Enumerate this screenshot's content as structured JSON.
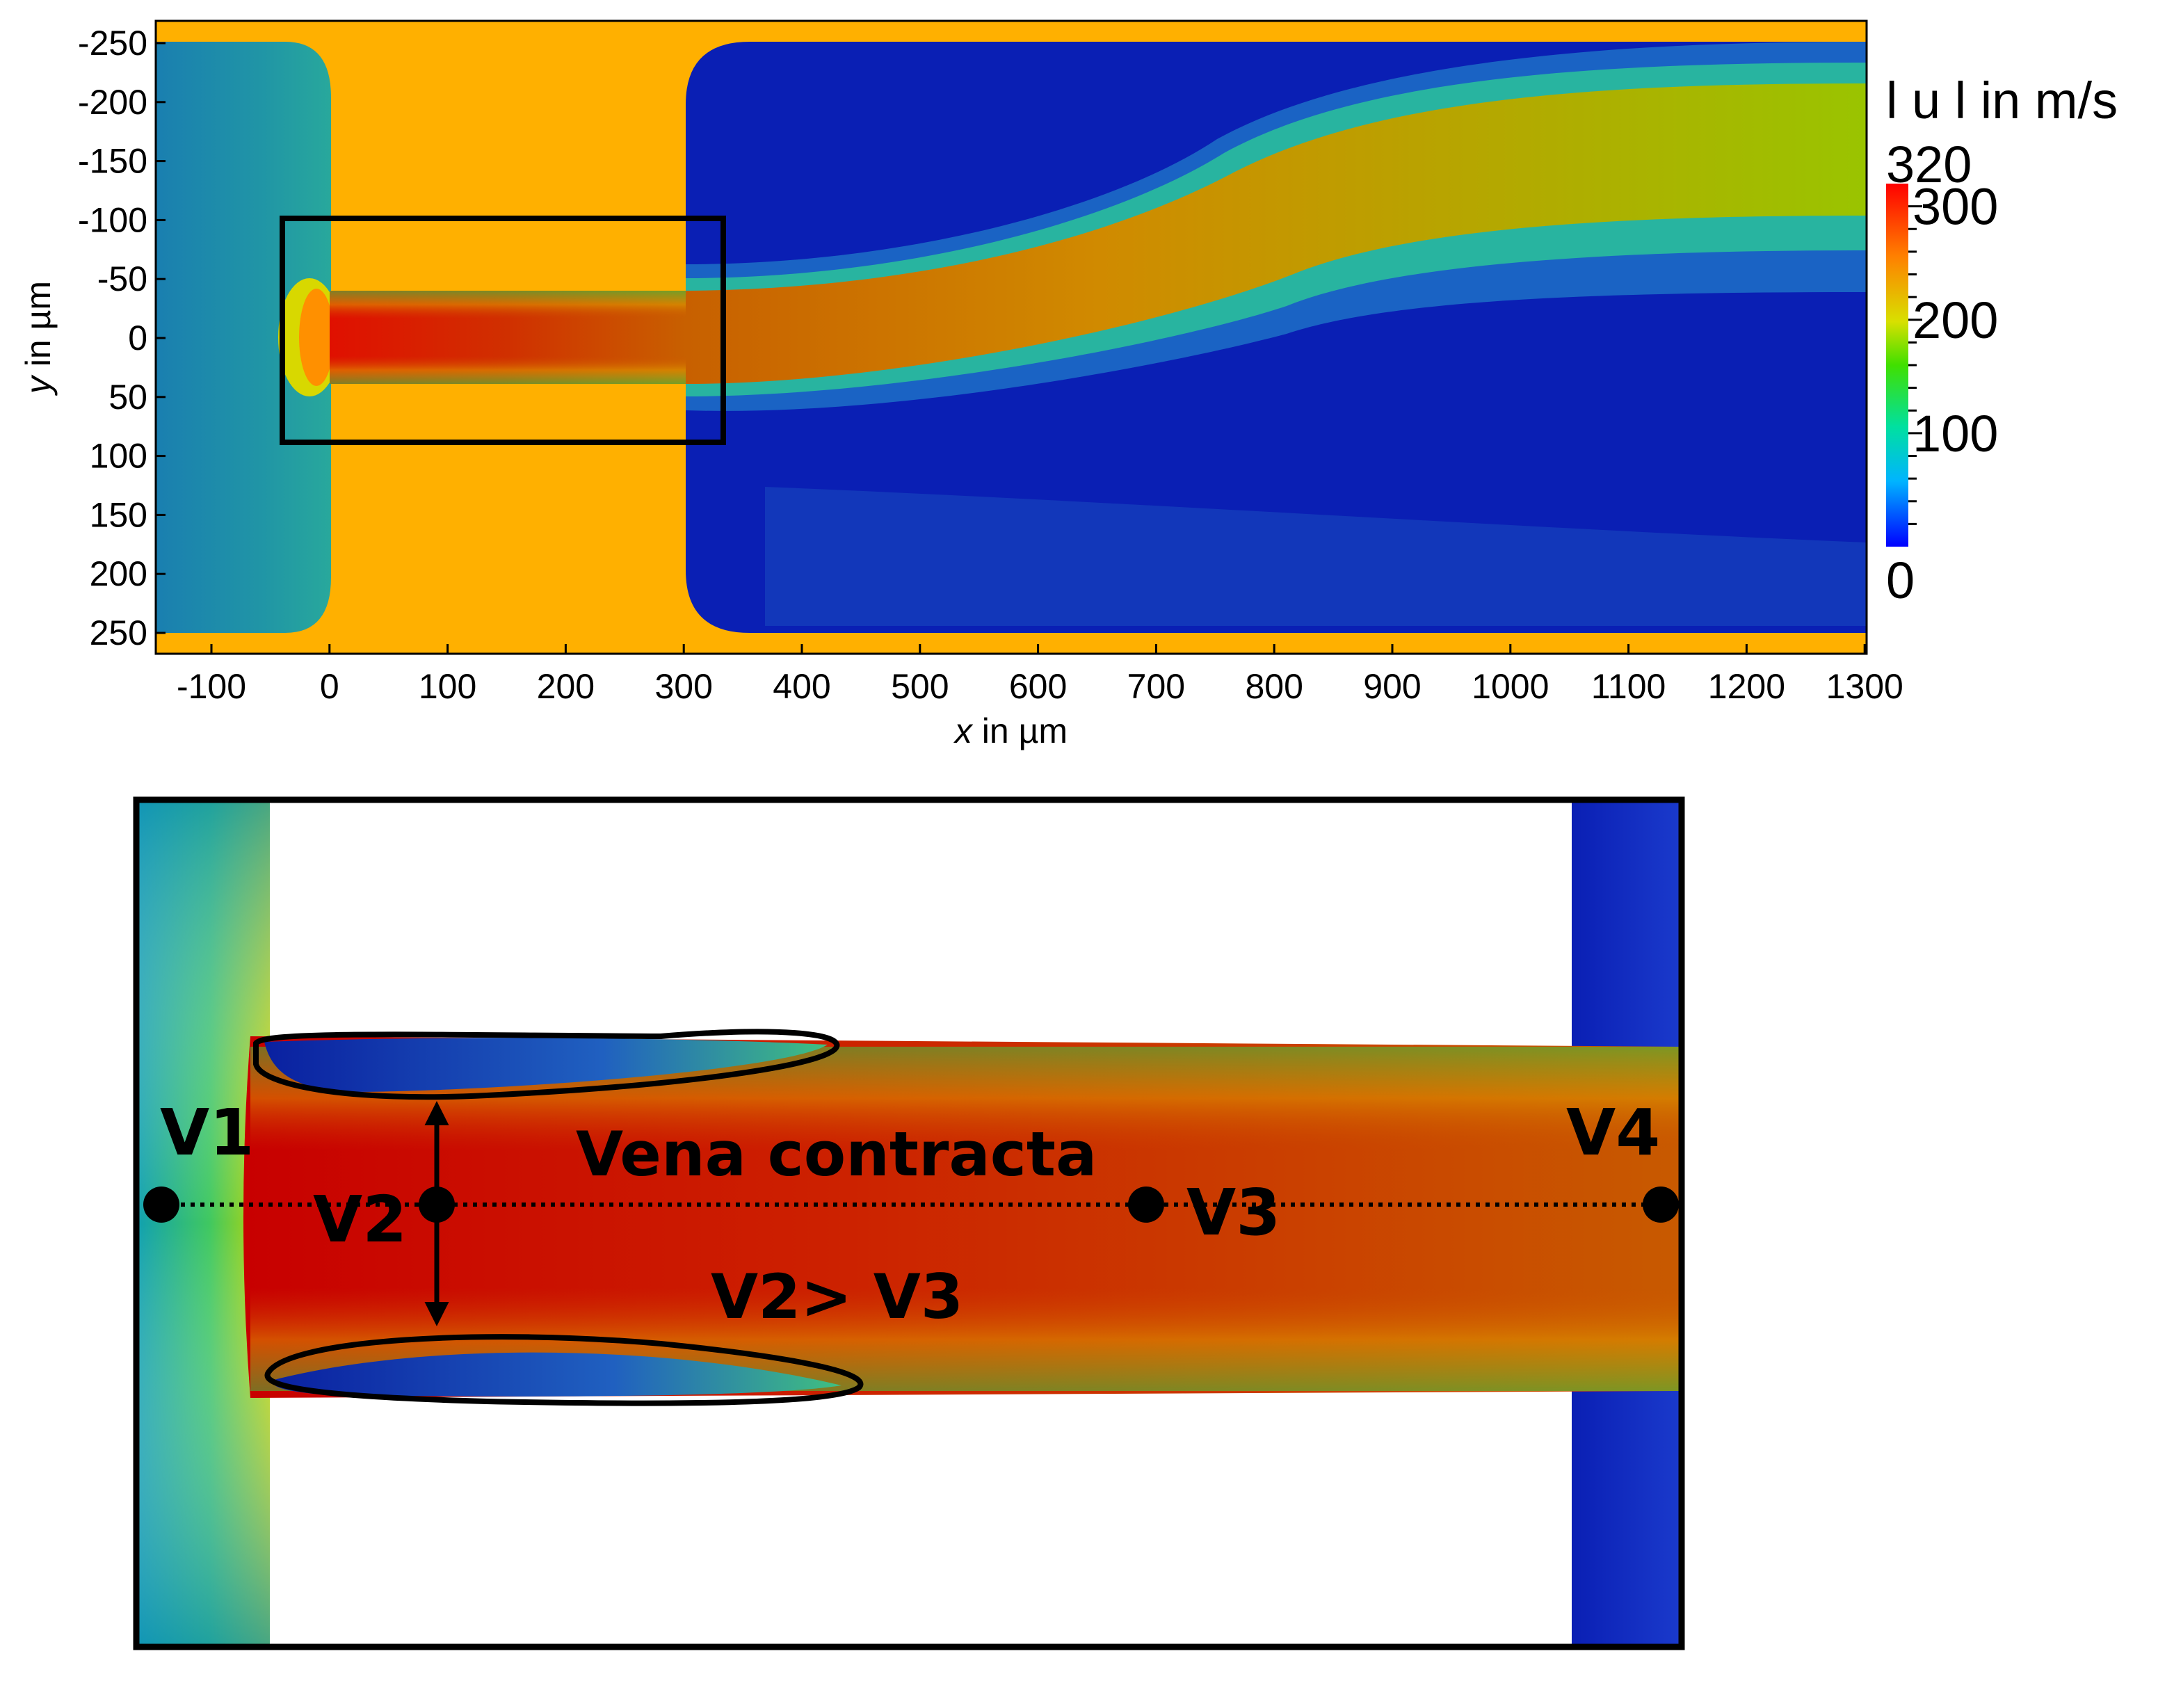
{
  "top_plot": {
    "y_ticks": [
      "-250",
      "-200",
      "-150",
      "-100",
      "-50",
      "0",
      "50",
      "100",
      "150",
      "200",
      "250"
    ],
    "x_ticks": [
      "-100",
      "0",
      "100",
      "200",
      "300",
      "400",
      "500",
      "600",
      "700",
      "800",
      "900",
      "1000",
      "1100",
      "1200",
      "1300"
    ],
    "y_label_var": "y",
    "y_label_unit": " in µm",
    "x_label_var": "x",
    "x_label_unit": " in µm",
    "colorbar": {
      "title": "l u l  in m/s",
      "max_label": "320",
      "ticks": [
        "300",
        "200",
        "100"
      ],
      "min_label": "0"
    },
    "colors": {
      "solid": "#FFB000",
      "high": "#CC0000",
      "low": "#0A1FB4"
    }
  },
  "zoom_panel": {
    "labels": {
      "v1": "V1",
      "v2": "V2",
      "v3": "V3",
      "v4": "V4",
      "vena": "Vena contracta",
      "relation": "V2> V3"
    }
  }
}
